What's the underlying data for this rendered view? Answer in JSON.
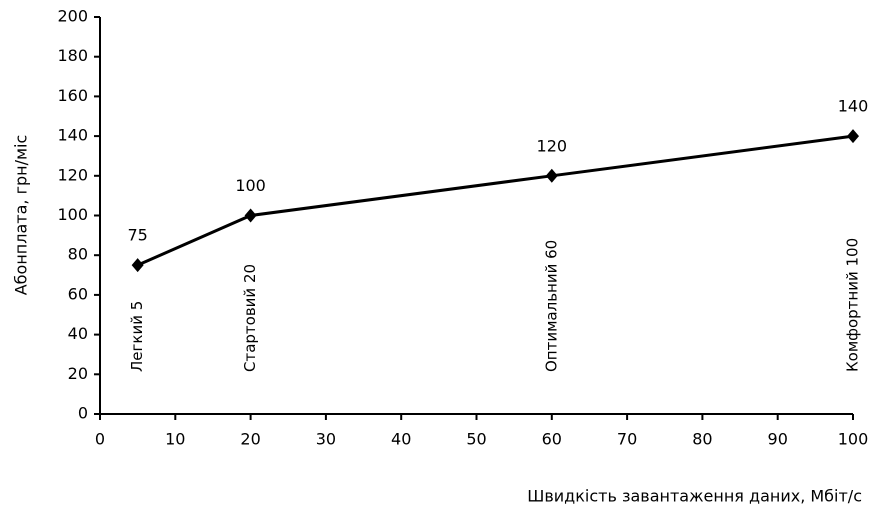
{
  "chart_data": {
    "type": "line",
    "x_label": "Швидкість завантаження даних, Мбіт/с",
    "y_label": "Абонплата, грн/міс",
    "x": [
      5,
      20,
      60,
      100
    ],
    "series": [
      {
        "name": "Абонплата",
        "color": "#000000",
        "values": [
          75,
          100,
          120,
          140
        ]
      }
    ],
    "point_labels": [
      "Легкий 5",
      "Стартовий 20",
      "Оптимальний 60",
      "Комфортний 100"
    ],
    "xlim": [
      0,
      100
    ],
    "xticks": [
      0,
      10,
      20,
      30,
      40,
      50,
      60,
      70,
      80,
      90,
      100
    ],
    "ylim": [
      0,
      200
    ],
    "yticks": [
      0,
      20,
      40,
      60,
      80,
      100,
      120,
      140,
      160,
      180,
      200
    ],
    "grid": false
  }
}
